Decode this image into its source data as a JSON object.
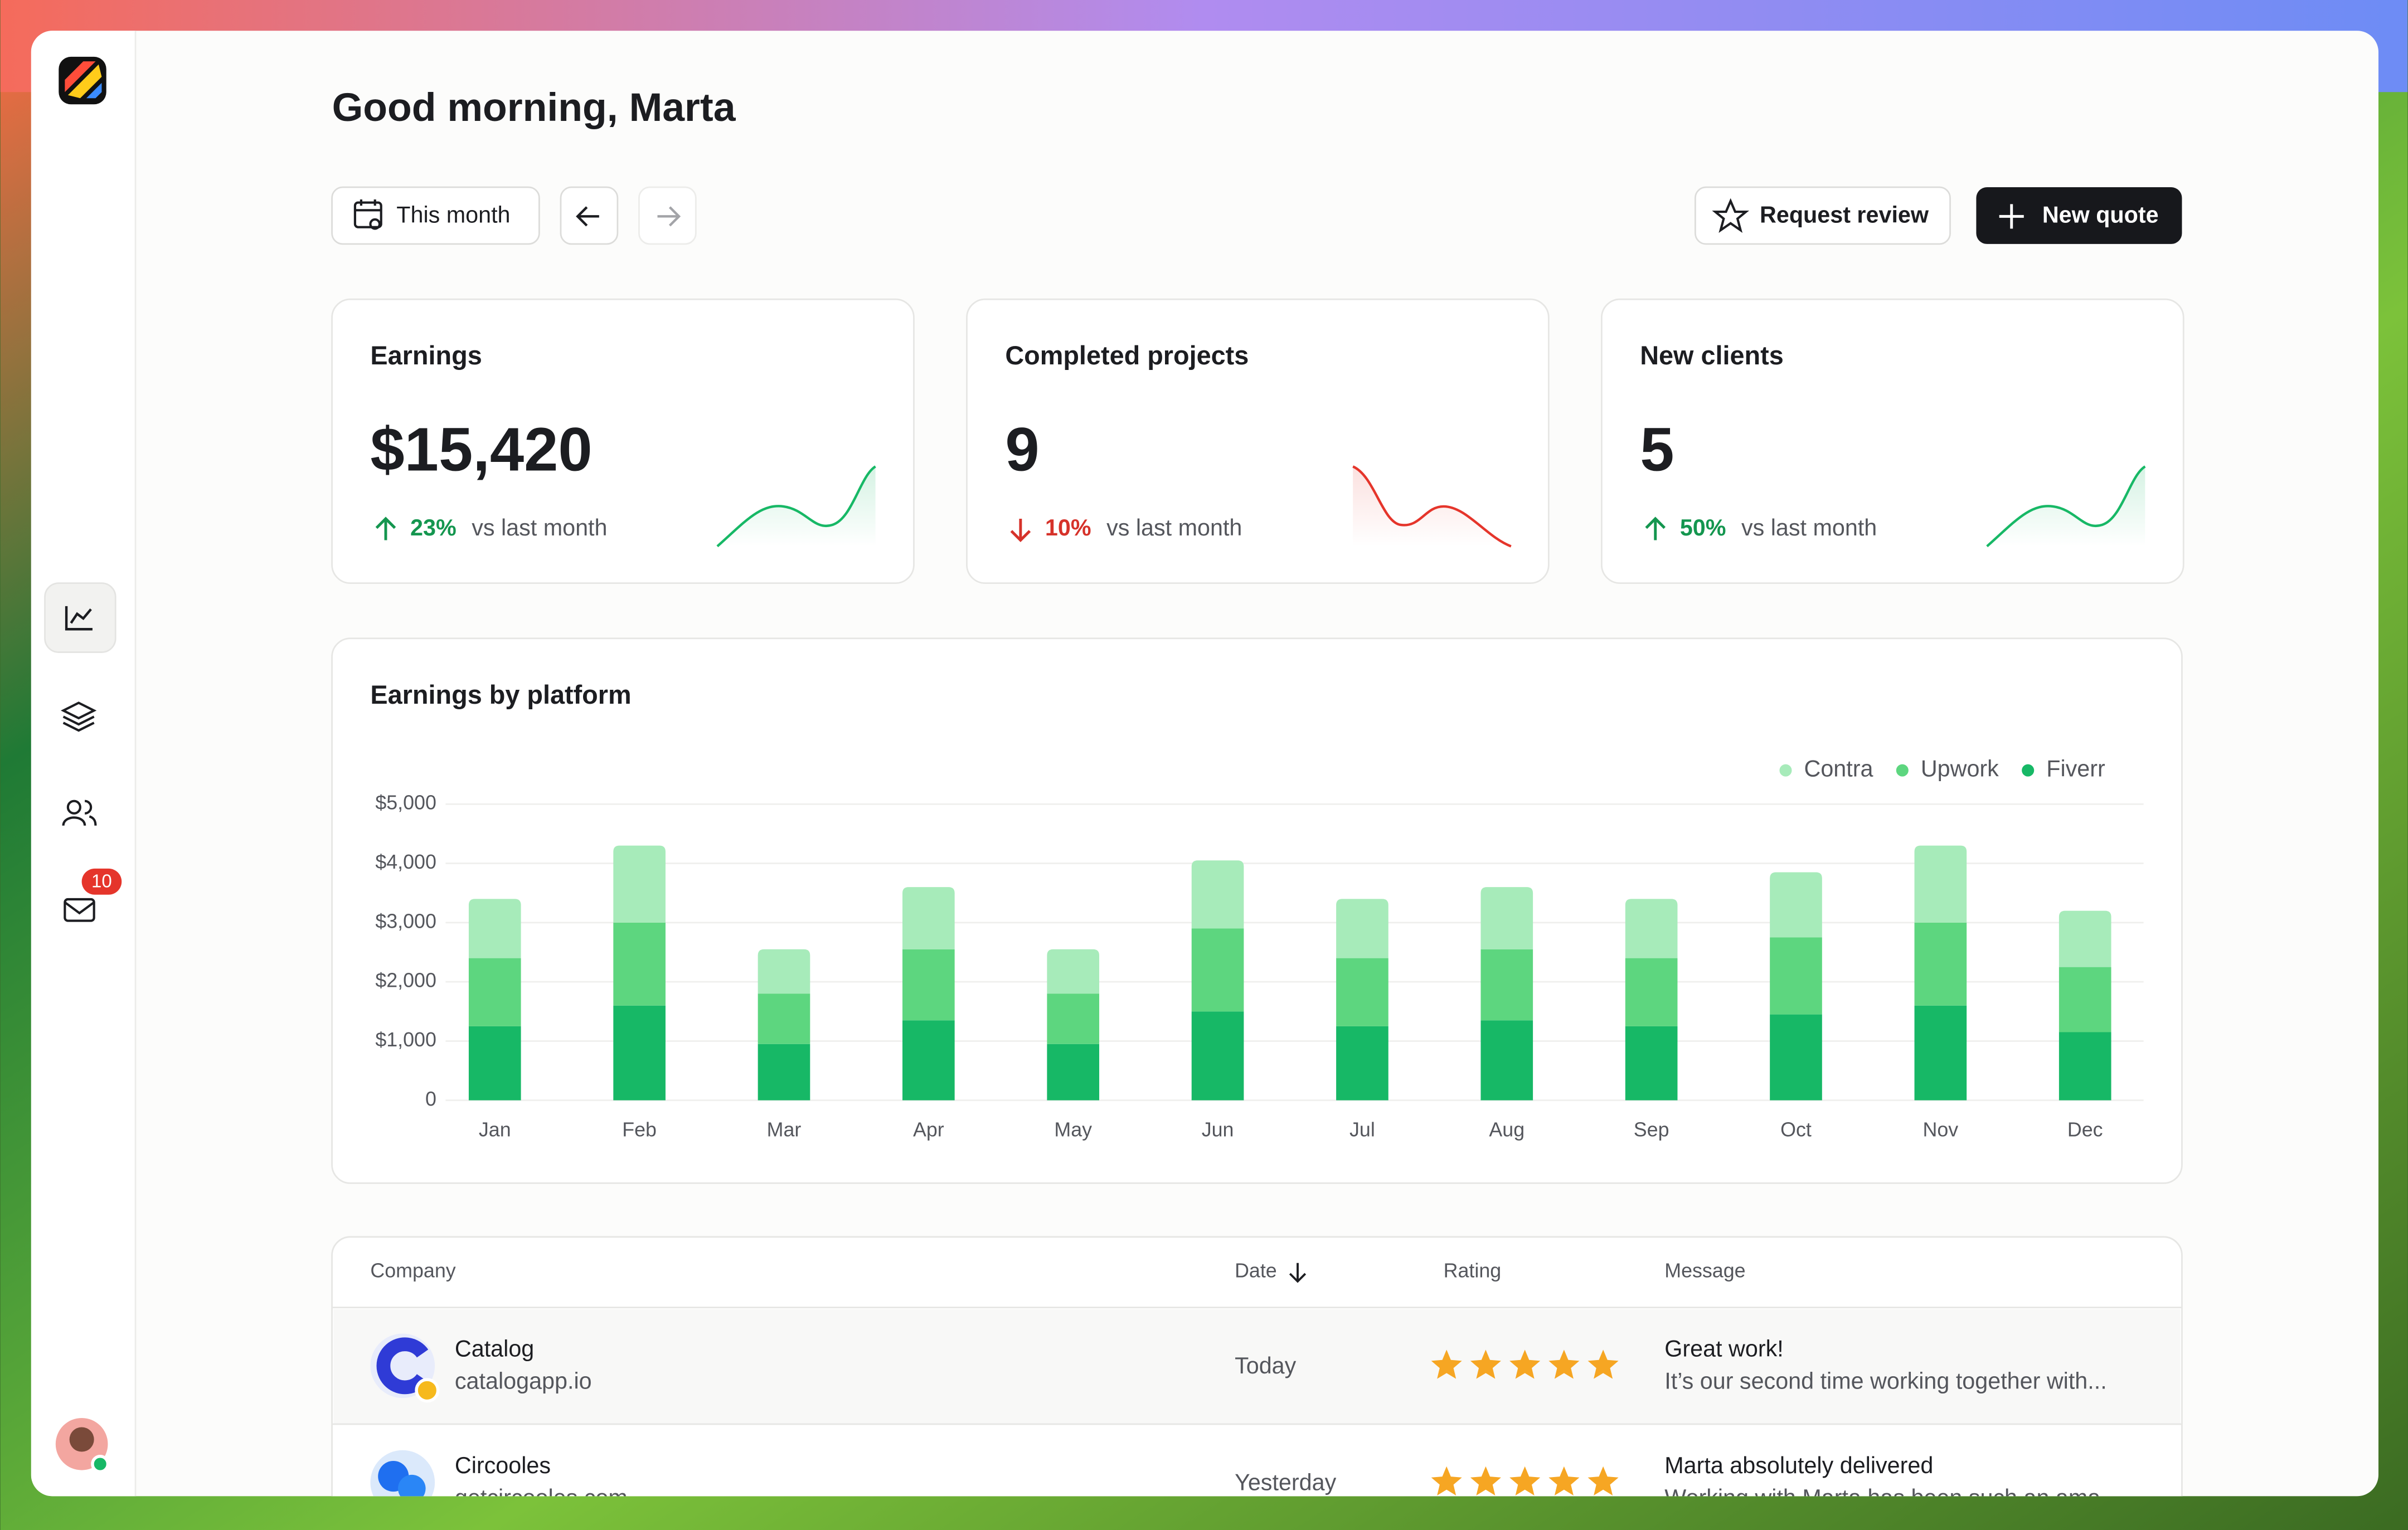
{
  "header": {
    "title": "Good morning, Marta"
  },
  "toolbar": {
    "period": "This month",
    "request_review": "Request review",
    "new_quote": "New quote"
  },
  "sidebar": {
    "notifications": 10
  },
  "stats": [
    {
      "title": "Earnings",
      "value": "$15,420",
      "change": "23%",
      "direction": "up",
      "note": "vs last month"
    },
    {
      "title": "Completed projects",
      "value": "9",
      "change": "10%",
      "direction": "down",
      "note": "vs last month"
    },
    {
      "title": "New clients",
      "value": "5",
      "change": "50%",
      "direction": "up",
      "note": "vs last month"
    }
  ],
  "chart_data": {
    "type": "bar",
    "stacked": true,
    "title": "Earnings by platform",
    "categories": [
      "Jan",
      "Feb",
      "Mar",
      "Apr",
      "May",
      "Jun",
      "Jul",
      "Aug",
      "Sep",
      "Oct",
      "Nov",
      "Dec"
    ],
    "series": [
      {
        "name": "Contra",
        "color": "#a7ebba",
        "values": [
          1000,
          1300,
          750,
          1050,
          750,
          1150,
          1000,
          1050,
          1000,
          1100,
          1300,
          950
        ]
      },
      {
        "name": "Upwork",
        "color": "#5dd67f",
        "values": [
          1150,
          1400,
          850,
          1200,
          850,
          1400,
          1150,
          1200,
          1150,
          1300,
          1400,
          1100
        ]
      },
      {
        "name": "Fiverr",
        "color": "#17b866",
        "values": [
          1250,
          1600,
          950,
          1350,
          950,
          1500,
          1250,
          1350,
          1250,
          1450,
          1600,
          1150
        ]
      }
    ],
    "ylim": [
      0,
      5000
    ],
    "yticks": [
      0,
      {
        "value": 1000,
        "label": "$1,000"
      },
      {
        "value": 2000,
        "label": "$2,000"
      },
      {
        "value": 3000,
        "label": "$3,000"
      },
      {
        "value": 4000,
        "label": "$4,000"
      },
      {
        "value": 5000,
        "label": "$5,000"
      }
    ],
    "grid": true,
    "legend": "top-right"
  },
  "table": {
    "columns": [
      "Company",
      "Date",
      "Rating",
      "Message"
    ],
    "rows": [
      {
        "company": "Catalog",
        "domain": "catalogapp.io",
        "date": "Today",
        "rating": 5,
        "message_title": "Great work!",
        "message": "It’s our second time working together with..."
      },
      {
        "company": "Circooles",
        "domain": "getcircooles.com",
        "date": "Yesterday",
        "rating": 5,
        "message_title": "Marta absolutely delivered",
        "message": "Working with Marta has been such an ama..."
      }
    ]
  }
}
